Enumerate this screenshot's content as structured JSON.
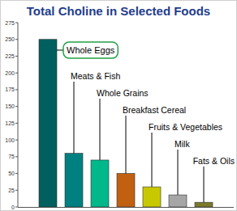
{
  "chart_data": {
    "type": "bar",
    "title": "Total Choline in Selected Foods",
    "categories": [
      "Whole Eggs",
      "Meats & Fish",
      "Whole Grains",
      "Breakfast Cereal",
      "Fruits & Vegetables",
      "Milk",
      "Fats & Oils"
    ],
    "values": [
      250,
      80,
      70,
      50,
      30,
      18,
      7
    ],
    "colors": [
      "#005f5f",
      "#008080",
      "#00b88a",
      "#c06010",
      "#c8c800",
      "#a6a6a6",
      "#7a7a2a"
    ],
    "ylim": [
      0,
      275
    ],
    "yticks": [
      0,
      25,
      50,
      75,
      100,
      125,
      150,
      175,
      200,
      225,
      250,
      275
    ],
    "grid": false,
    "tick_labels": "y"
  }
}
